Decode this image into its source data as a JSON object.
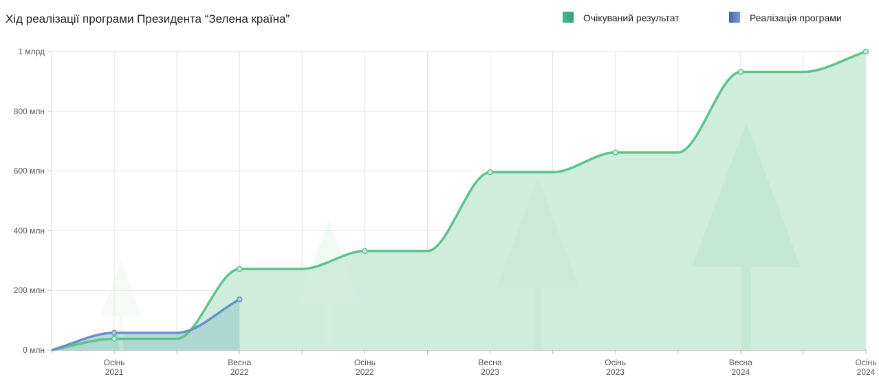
{
  "chart_data": {
    "type": "area-line",
    "title": "Хід реалізації програми Президента “Зелена країна”",
    "categories": [
      null,
      [
        "Осінь",
        "2021"
      ],
      null,
      [
        "Весна",
        "2022"
      ],
      null,
      [
        "Осінь",
        "2022"
      ],
      null,
      [
        "Весна",
        "2023"
      ],
      null,
      [
        "Осінь",
        "2023"
      ],
      null,
      [
        "Весна",
        "2024"
      ],
      null,
      [
        "Осінь",
        "2024"
      ]
    ],
    "series": [
      {
        "name": "Очікуваний результат",
        "color": "#5cc38d",
        "fill": "#d0ecdd",
        "values": [
          0,
          38,
          38,
          272,
          272,
          332,
          332,
          596,
          596,
          662,
          662,
          932,
          932,
          1000
        ]
      },
      {
        "name": "Реалізація програми",
        "color": "#6a8fc8",
        "fill": "#a8d3d0",
        "values": [
          0,
          58,
          58,
          170,
          null,
          null,
          null,
          null,
          null,
          null,
          null,
          null,
          null,
          null
        ]
      }
    ],
    "ylim": [
      0,
      1000
    ],
    "yticks": [
      {
        "value": 0,
        "label": "0 млн"
      },
      {
        "value": 200,
        "label": "200 млн"
      },
      {
        "value": 400,
        "label": "400 млн"
      },
      {
        "value": 600,
        "label": "600 млн"
      },
      {
        "value": 800,
        "label": "800 млн"
      },
      {
        "value": 1000,
        "label": "1 млрд"
      }
    ],
    "grid": true
  }
}
